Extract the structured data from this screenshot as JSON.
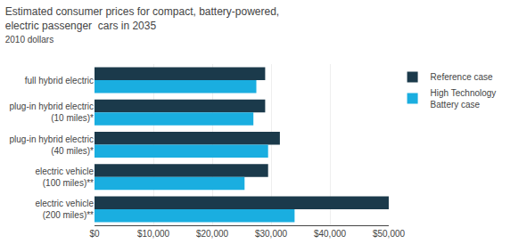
{
  "chart_data": {
    "type": "bar",
    "orientation": "horizontal",
    "title": "Estimated consumer prices for compact, battery-powered,\nelectric passenger  cars in 2035",
    "subtitle": "2010 dollars",
    "categories": [
      "full hybrid electric",
      "plug-in hybrid electric\n(10 miles)*",
      "plug-in hybrid electric\n(40 miles)*",
      "electric vehicle\n(100 miles)**",
      "electric vehicle\n(200 miles)**"
    ],
    "series": [
      {
        "name": "Reference case",
        "color": "#1b3a4b",
        "values": [
          29000,
          29000,
          31500,
          29500,
          50000
        ]
      },
      {
        "name": "High Technology\nBattery case",
        "color": "#1aaee0",
        "values": [
          27500,
          27000,
          29500,
          25500,
          34000
        ]
      }
    ],
    "xlim": [
      0,
      50000
    ],
    "xticks": [
      {
        "value": 0,
        "label": "$0"
      },
      {
        "value": 10000,
        "label": "$10,000"
      },
      {
        "value": 20000,
        "label": "$20,000"
      },
      {
        "value": 30000,
        "label": "$30,000"
      },
      {
        "value": 40000,
        "label": "$40,000"
      },
      {
        "value": 50000,
        "label": "$50,000"
      }
    ],
    "grid": true,
    "legend": "right"
  }
}
